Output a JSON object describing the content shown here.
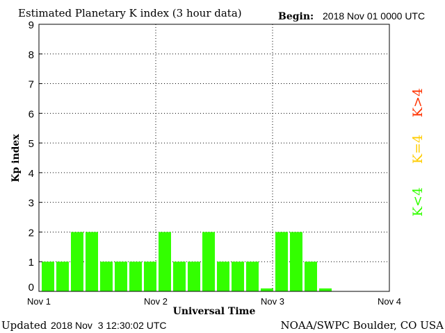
{
  "header": {
    "title": "Estimated Planetary K index (3 hour data)",
    "begin_label": "Begin:",
    "begin_value": "2018 Nov 01 0000 UTC"
  },
  "footer": {
    "updated_label": "Updated",
    "updated_value": "2018 Nov  3 12:30:02 UTC",
    "source": "NOAA/SWPC Boulder, CO USA"
  },
  "legend": [
    {
      "label": "K>4",
      "color": "#ff3300"
    },
    {
      "label": "K=4",
      "color": "#ffcc00"
    },
    {
      "label": "K<4",
      "color": "#33ff00"
    }
  ],
  "chart_data": {
    "type": "bar",
    "title": "Estimated Planetary K index (3 hour data)",
    "xlabel": "Universal Time",
    "ylabel": "Kp index",
    "ylim": [
      0,
      9
    ],
    "yticks": [
      0,
      1,
      2,
      3,
      4,
      5,
      6,
      7,
      8,
      9
    ],
    "xticks": [
      "Nov 1",
      "Nov 2",
      "Nov 3",
      "Nov 4"
    ],
    "bars_per_day": 8,
    "bar_color": "#33ff00",
    "grid": true,
    "values": [
      1,
      1,
      2,
      2,
      1,
      1,
      1,
      1,
      2,
      1,
      1,
      2,
      1,
      1,
      1,
      0.1,
      2,
      2,
      1,
      0.1
    ]
  }
}
